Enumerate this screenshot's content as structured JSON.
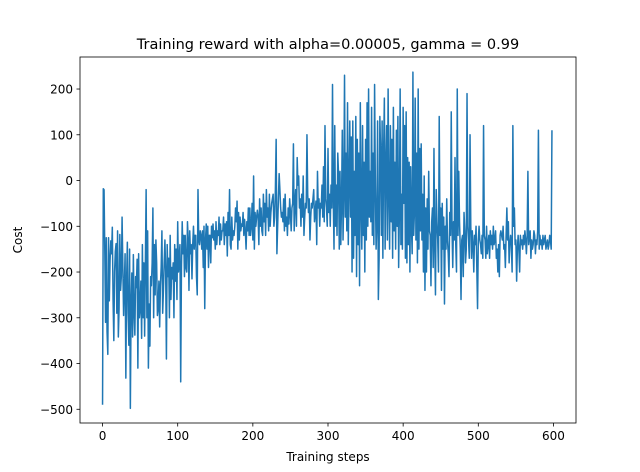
{
  "chart_data": {
    "type": "line",
    "title": "Training reward with alpha=0.00005, gamma = 0.99",
    "xlabel": "Training steps",
    "ylabel": "Cost",
    "xlim": [
      -30,
      630
    ],
    "ylim": [
      -530,
      270
    ],
    "xticks": [
      0,
      100,
      200,
      300,
      400,
      500,
      600
    ],
    "yticks": [
      -500,
      -400,
      -300,
      -200,
      -100,
      0,
      100,
      200
    ],
    "xtick_labels": [
      "0",
      "100",
      "200",
      "300",
      "400",
      "500",
      "600"
    ],
    "ytick_labels": [
      "−500",
      "−400",
      "−300",
      "−200",
      "−100",
      "0",
      "100",
      "200"
    ],
    "grid": false,
    "legend": "none",
    "series": [
      {
        "color": "#1f77b4",
        "x": [
          0,
          1,
          2,
          3,
          4,
          5,
          6,
          7,
          8,
          9,
          10,
          11,
          12,
          13,
          14,
          15,
          16,
          17,
          18,
          19,
          20,
          21,
          22,
          23,
          24,
          25,
          26,
          27,
          28,
          29,
          30,
          31,
          32,
          33,
          34,
          35,
          36,
          37,
          38,
          39,
          40,
          41,
          42,
          43,
          44,
          45,
          46,
          47,
          48,
          49,
          50,
          51,
          52,
          53,
          54,
          55,
          56,
          57,
          58,
          59,
          60,
          61,
          62,
          63,
          64,
          65,
          66,
          67,
          68,
          69,
          70,
          71,
          72,
          73,
          74,
          75,
          76,
          77,
          78,
          79,
          80,
          81,
          82,
          83,
          84,
          85,
          86,
          87,
          88,
          89,
          90,
          91,
          92,
          93,
          94,
          95,
          96,
          97,
          98,
          99,
          100,
          101,
          102,
          103,
          104,
          105,
          106,
          107,
          108,
          109,
          110,
          111,
          112,
          113,
          114,
          115,
          116,
          117,
          118,
          119,
          120,
          121,
          122,
          123,
          124,
          125,
          126,
          127,
          128,
          129,
          130,
          131,
          132,
          133,
          134,
          135,
          136,
          137,
          138,
          139,
          140,
          141,
          142,
          143,
          144,
          145,
          146,
          147,
          148,
          149,
          150,
          151,
          152,
          153,
          154,
          155,
          156,
          157,
          158,
          159,
          160,
          161,
          162,
          163,
          164,
          165,
          166,
          167,
          168,
          169,
          170,
          171,
          172,
          173,
          174,
          175,
          176,
          177,
          178,
          179,
          180,
          181,
          182,
          183,
          184,
          185,
          186,
          187,
          188,
          189,
          190,
          191,
          192,
          193,
          194,
          195,
          196,
          197,
          198,
          199,
          200,
          201,
          202,
          203,
          204,
          205,
          206,
          207,
          208,
          209,
          210,
          211,
          212,
          213,
          214,
          215,
          216,
          217,
          218,
          219,
          220,
          221,
          222,
          223,
          224,
          225,
          226,
          227,
          228,
          229,
          230,
          231,
          232,
          233,
          234,
          235,
          236,
          237,
          238,
          239,
          240,
          241,
          242,
          243,
          244,
          245,
          246,
          247,
          248,
          249,
          250,
          251,
          252,
          253,
          254,
          255,
          256,
          257,
          258,
          259,
          260,
          261,
          262,
          263,
          264,
          265,
          266,
          267,
          268,
          269,
          270,
          271,
          272,
          273,
          274,
          275,
          276,
          277,
          278,
          279,
          280,
          281,
          282,
          283,
          284,
          285,
          286,
          287,
          288,
          289,
          290,
          291,
          292,
          293,
          294,
          295,
          296,
          297,
          298,
          299,
          300,
          301,
          302,
          303,
          304,
          305,
          306,
          307,
          308,
          309,
          310,
          311,
          312,
          313,
          314,
          315,
          316,
          317,
          318,
          319,
          320,
          321,
          322,
          323,
          324,
          325,
          326,
          327,
          328,
          329,
          330,
          331,
          332,
          333,
          334,
          335,
          336,
          337,
          338,
          339,
          340,
          341,
          342,
          343,
          344,
          345,
          346,
          347,
          348,
          349,
          350,
          351,
          352,
          353,
          354,
          355,
          356,
          357,
          358,
          359,
          360,
          361,
          362,
          363,
          364,
          365,
          366,
          367,
          368,
          369,
          370,
          371,
          372,
          373,
          374,
          375,
          376,
          377,
          378,
          379,
          380,
          381,
          382,
          383,
          384,
          385,
          386,
          387,
          388,
          389,
          390,
          391,
          392,
          393,
          394,
          395,
          396,
          397,
          398,
          399,
          400,
          401,
          402,
          403,
          404,
          405,
          406,
          407,
          408,
          409,
          410,
          411,
          412,
          413,
          414,
          415,
          416,
          417,
          418,
          419,
          420,
          421,
          422,
          423,
          424,
          425,
          426,
          427,
          428,
          429,
          430,
          431,
          432,
          433,
          434,
          435,
          436,
          437,
          438,
          439,
          440,
          441,
          442,
          443,
          444,
          445,
          446,
          447,
          448,
          449,
          450,
          451,
          452,
          453,
          454,
          455,
          456,
          457,
          458,
          459,
          460,
          461,
          462,
          463,
          464,
          465,
          466,
          467,
          468,
          469,
          470,
          471,
          472,
          473,
          474,
          475,
          476,
          477,
          478,
          479,
          480,
          481,
          482,
          483,
          484,
          485,
          486,
          487,
          488,
          489,
          490,
          491,
          492,
          493,
          494,
          495,
          496,
          497,
          498,
          499,
          500,
          501,
          502,
          503,
          504,
          505,
          506,
          507,
          508,
          509,
          510,
          511,
          512,
          513,
          514,
          515,
          516,
          517,
          518,
          519,
          520,
          521,
          522,
          523,
          524,
          525,
          526,
          527,
          528,
          529,
          530,
          531,
          532,
          533,
          534,
          535,
          536,
          537,
          538,
          539,
          540,
          541,
          542,
          543,
          544,
          545,
          546,
          547,
          548,
          549,
          550,
          551,
          552,
          553,
          554,
          555,
          556,
          557,
          558,
          559,
          560,
          561,
          562,
          563,
          564,
          565,
          566,
          567,
          568,
          569,
          570,
          571,
          572,
          573,
          574,
          575,
          576,
          577,
          578,
          579,
          580,
          581,
          582,
          583,
          584,
          585,
          586,
          587,
          588,
          589,
          590,
          591,
          592,
          593,
          594,
          595,
          596,
          597,
          598
        ],
        "y": [
          -490,
          -18,
          -20,
          -155,
          -310,
          -125,
          -330,
          -380,
          -125,
          -263,
          -175,
          -132,
          -160,
          -102,
          -260,
          -350,
          -200,
          -155,
          -138,
          -290,
          -110,
          -342,
          -280,
          -118,
          -240,
          -210,
          -80,
          -188,
          -295,
          -230,
          -160,
          -432,
          -220,
          -135,
          -290,
          -360,
          -150,
          -498,
          -270,
          -202,
          -342,
          -162,
          -288,
          -338,
          -210,
          -234,
          -172,
          -410,
          -160,
          -300,
          -280,
          -220,
          -345,
          -140,
          -300,
          -180,
          -340,
          -180,
          -20,
          -300,
          -110,
          -410,
          -270,
          -362,
          -210,
          -230,
          -180,
          -60,
          -300,
          -140,
          -250,
          -130,
          -180,
          -295,
          -280,
          -220,
          -320,
          -230,
          -190,
          -110,
          -290,
          -240,
          -180,
          -130,
          -200,
          -390,
          -140,
          -210,
          -170,
          -300,
          -120,
          -260,
          -190,
          -215,
          -180,
          -300,
          -140,
          -220,
          -150,
          -260,
          -90,
          -200,
          -170,
          -140,
          -440,
          -190,
          -90,
          -160,
          -120,
          -210,
          -120,
          -190,
          -200,
          -90,
          -130,
          -240,
          -110,
          -160,
          -140,
          -215,
          -140,
          -100,
          -150,
          -120,
          -120,
          -210,
          -250,
          -20,
          -130,
          -140,
          -110,
          -120,
          -150,
          -110,
          -190,
          -100,
          -280,
          -130,
          -95,
          -150,
          -100,
          -190,
          -120,
          -120,
          -180,
          -100,
          -125,
          -95,
          -130,
          -110,
          -150,
          -90,
          -140,
          -110,
          -120,
          -80,
          -140,
          -95,
          -130,
          -110,
          -110,
          -80,
          -140,
          -95,
          -120,
          -90,
          -165,
          -70,
          -120,
          -20,
          -140,
          -150,
          -80,
          -130,
          -110,
          -120,
          -100,
          -60,
          -90,
          -45,
          -150,
          -70,
          -130,
          -80,
          -110,
          -95,
          -100,
          -70,
          -120,
          -85,
          -110,
          -150,
          -90,
          -110,
          -60,
          -120,
          -60,
          -120,
          -100,
          -50,
          -130,
          10,
          -150,
          -70,
          -100,
          -80,
          -65,
          -80,
          -140,
          -40,
          -100,
          -60,
          -110,
          -120,
          -30,
          -90,
          -50,
          -120,
          -20,
          -80,
          -60,
          -110,
          -30,
          -100,
          -70,
          -50,
          -40,
          -30,
          -100,
          -80,
          -20,
          90,
          -160,
          -100,
          -40,
          15,
          -20,
          -60,
          -80,
          -70,
          -90,
          -40,
          -110,
          -30,
          -100,
          -80,
          -120,
          -60,
          -95,
          -40,
          -70,
          -110,
          -60,
          -50,
          80,
          -110,
          -50,
          -20,
          -100,
          50,
          -10,
          10,
          -60,
          -40,
          -100,
          -30,
          -80,
          10,
          -120,
          -80,
          -50,
          -60,
          100,
          -30,
          -70,
          -40,
          -130,
          -80,
          -50,
          -60,
          -40,
          -20,
          -90,
          -70,
          -45,
          -140,
          20,
          -60,
          -40,
          -100,
          -50,
          -60,
          -10,
          -80,
          30,
          -90,
          120,
          -40,
          -60,
          -100,
          70,
          -70,
          -30,
          -100,
          -10,
          -60,
          210,
          -40,
          -150,
          120,
          -100,
          -10,
          -120,
          60,
          15,
          -150,
          20,
          -140,
          -50,
          110,
          -130,
          -30,
          230,
          -80,
          60,
          -110,
          170,
          -140,
          -10,
          130,
          -80,
          95,
          -200,
          130,
          -170,
          20,
          -120,
          140,
          -210,
          90,
          -140,
          60,
          -230,
          170,
          -50,
          -150,
          120,
          -120,
          40,
          -200,
          90,
          -130,
          170,
          -100,
          200,
          -80,
          20,
          -90,
          160,
          -120,
          60,
          -140,
          210,
          -10,
          -150,
          -90,
          130,
          -260,
          -170,
          140,
          60,
          -120,
          130,
          -170,
          60,
          180,
          -150,
          30,
          120,
          -130,
          200,
          -30,
          -150,
          120,
          -90,
          90,
          -170,
          160,
          -110,
          40,
          -150,
          110,
          -100,
          140,
          -190,
          -70,
          200,
          -140,
          -30,
          -150,
          160,
          -50,
          120,
          -170,
          150,
          -180,
          50,
          -140,
          40,
          -200,
          30,
          -100,
          -160,
          237,
          -120,
          -70,
          180,
          -130,
          60,
          -180,
          200,
          -150,
          70,
          -110,
          80,
          -130,
          -30,
          -200,
          10,
          -240,
          -60,
          -200,
          -40,
          -150,
          20,
          -110,
          -120,
          -230,
          -90,
          -60,
          -190,
          70,
          -140,
          -250,
          -20,
          -90,
          -130,
          -200,
          140,
          -120,
          -60,
          -240,
          -50,
          -150,
          -80,
          -270,
          -100,
          -150,
          -40,
          -130,
          -160,
          -210,
          -70,
          -120,
          150,
          -100,
          -190,
          -90,
          -130,
          50,
          -140,
          -200,
          200,
          -120,
          20,
          -90,
          -150,
          -260,
          -130,
          -120,
          -210,
          -70,
          -110,
          -180,
          -150,
          190,
          -100,
          -130,
          -170,
          100,
          -100,
          -170,
          -110,
          -140,
          -200,
          -120,
          -140,
          -100,
          -190,
          -280,
          -130,
          -100,
          -130,
          -140,
          -160,
          -120,
          -170,
          120,
          -120,
          -130,
          -170,
          -100,
          -160,
          -140,
          -120,
          -170,
          -110,
          -140,
          -120,
          -150,
          -100,
          -140,
          -130,
          -110,
          -170,
          -150,
          -200,
          -140,
          -210,
          -120,
          -110,
          -120,
          -130,
          -100,
          -150,
          -140,
          -190,
          -120,
          -60,
          -130,
          -90,
          -180,
          -140,
          -120,
          -140,
          -200,
          120,
          -100,
          -60,
          -140,
          -130,
          -220,
          -150,
          -120,
          -150,
          -200,
          -120,
          -140,
          -130,
          -150,
          -120,
          -140,
          -110,
          -130,
          -160,
          -120,
          20,
          -140,
          -120,
          -110,
          -170,
          -130,
          -150,
          -140,
          -110,
          -120,
          -160,
          -130,
          -140,
          -110,
          110,
          -150,
          -120,
          -140,
          -130,
          -150,
          -120,
          -140,
          -130,
          -120,
          -150,
          -140,
          -130,
          -150,
          -140,
          -120,
          -130,
          -150,
          110
        ]
      }
    ]
  }
}
